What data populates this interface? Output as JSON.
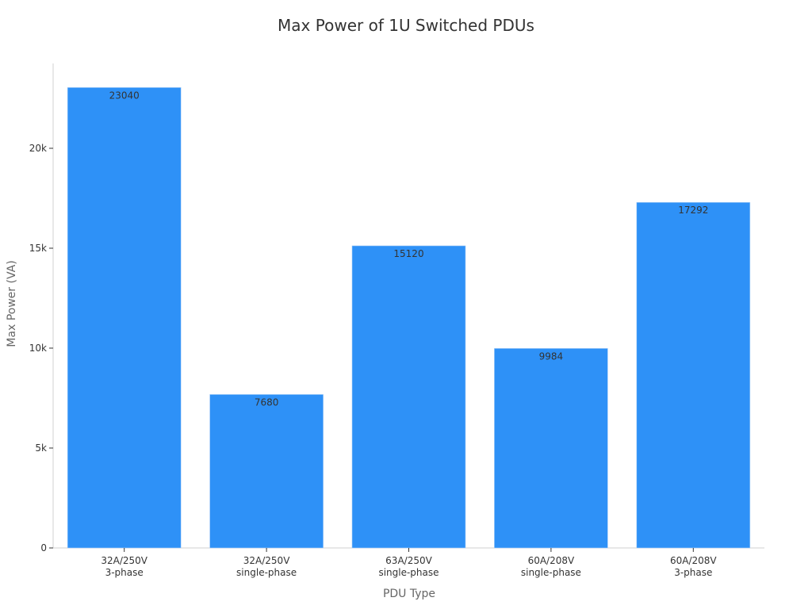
{
  "chart_data": {
    "type": "bar",
    "title": "Max Power of 1U Switched PDUs",
    "xlabel": "PDU Type",
    "ylabel": "Max Power (VA)",
    "categories": [
      "32A/250V 3-phase",
      "32A/250V single-phase",
      "63A/250V single-phase",
      "60A/208V single-phase",
      "60A/208V 3-phase"
    ],
    "category_lines": [
      [
        "32A/250V",
        "3-phase"
      ],
      [
        "32A/250V",
        "single-phase"
      ],
      [
        "63A/250V",
        "single-phase"
      ],
      [
        "60A/208V",
        "single-phase"
      ],
      [
        "60A/208V",
        "3-phase"
      ]
    ],
    "values": [
      23040,
      7680,
      15120,
      9984,
      17292
    ],
    "data_labels": [
      "23040",
      "7680",
      "15120",
      "9984",
      "17292"
    ],
    "yticks": [
      0,
      5000,
      10000,
      15000,
      20000
    ],
    "ytick_labels": [
      "0",
      "5k",
      "10k",
      "15k",
      "20k"
    ],
    "ylim": [
      0,
      24300
    ],
    "grid": false,
    "legend": null,
    "bar_color": "#2e91f7"
  }
}
